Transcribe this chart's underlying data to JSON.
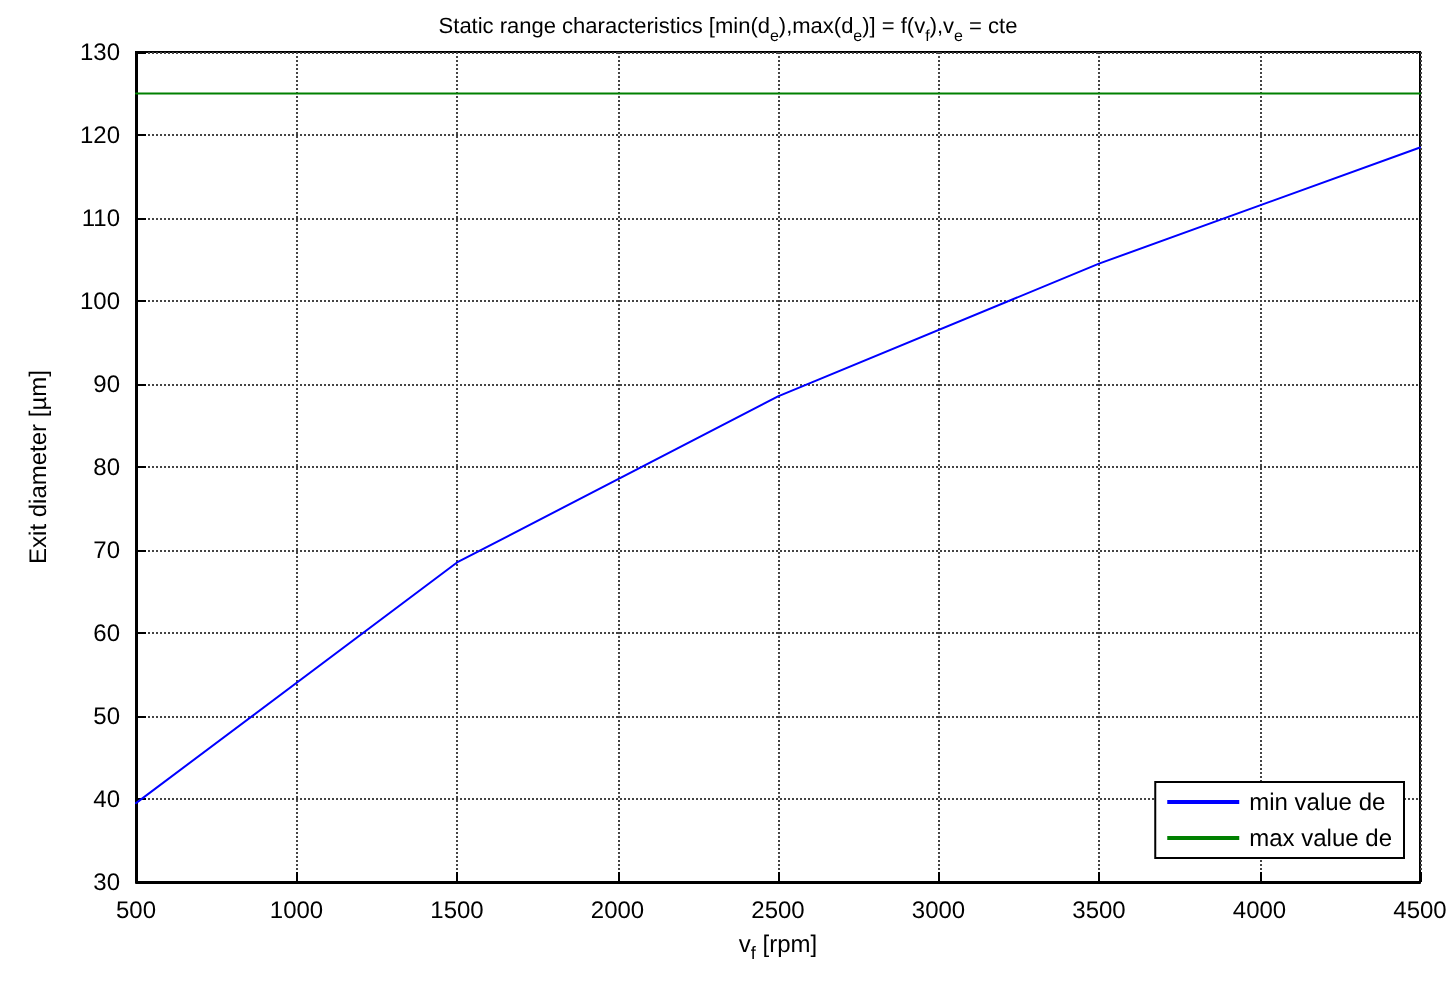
{
  "chart_data": {
    "type": "line",
    "title": "Static range characteristics [min(d$_{e}$),max(d$_{e}$)] = f(v$_{f}$),v$_{e}$ = cte",
    "xlabel": "v$_{f}$ [rpm]",
    "ylabel": "Exit diameter [µm]",
    "x": [
      500,
      1500,
      2500,
      3500,
      4500
    ],
    "series": [
      {
        "name": "min value de",
        "color": "#0000ff",
        "values": [
          39.5,
          68.5,
          88.5,
          104.5,
          118.5
        ]
      },
      {
        "name": "max value de",
        "color": "#008000",
        "values": [
          125,
          125,
          125,
          125,
          125
        ]
      }
    ],
    "xlim": [
      500,
      4500
    ],
    "xticks": [
      500,
      1000,
      1500,
      2000,
      2500,
      3000,
      3500,
      4000,
      4500
    ],
    "ylim": [
      30,
      130
    ],
    "yticks": [
      30,
      40,
      50,
      60,
      70,
      80,
      90,
      100,
      110,
      120,
      130
    ],
    "grid": true,
    "legend": "bottom right",
    "marker": "none",
    "line_style": "solid"
  }
}
